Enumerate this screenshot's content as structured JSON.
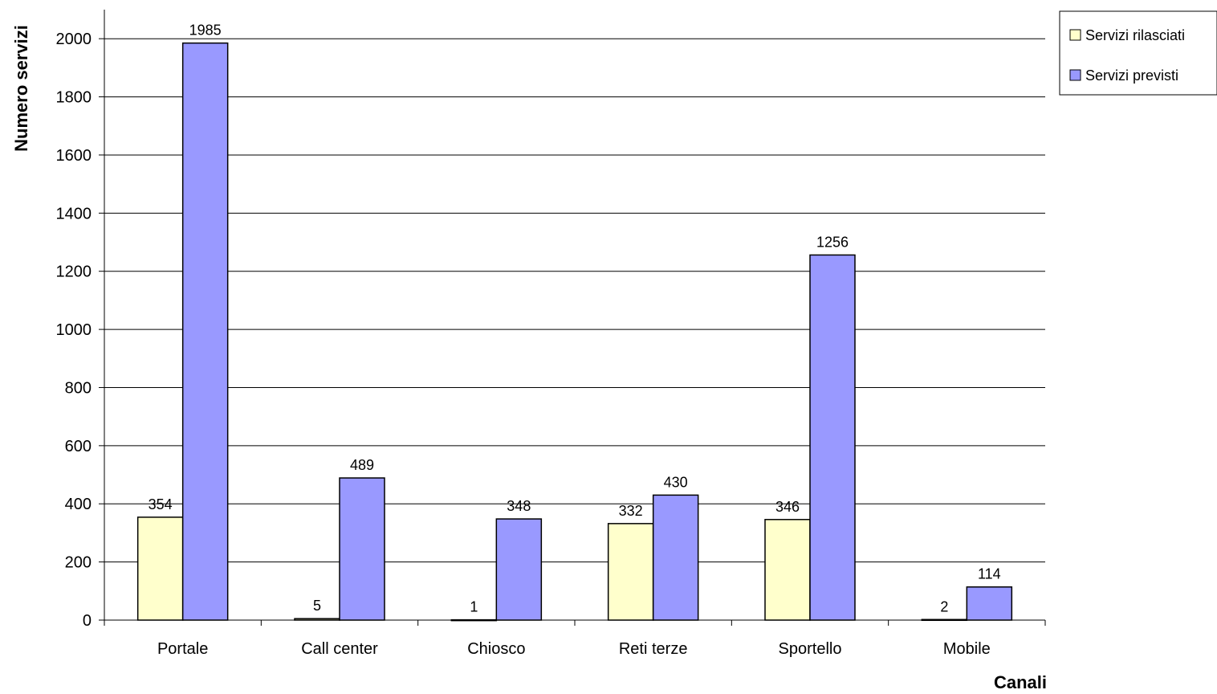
{
  "chart_data": {
    "type": "bar",
    "categories": [
      "Portale",
      "Call center",
      "Chiosco",
      "Reti terze",
      "Sportello",
      "Mobile"
    ],
    "series": [
      {
        "name": "Servizi rilasciati",
        "color": "#FFFFCC",
        "values": [
          354,
          5,
          1,
          332,
          346,
          2
        ]
      },
      {
        "name": "Servizi previsti",
        "color": "#9999FF",
        "values": [
          1985,
          489,
          348,
          430,
          1256,
          114
        ]
      }
    ],
    "xlabel": "Canali",
    "ylabel": "Numero servizi",
    "ylim": [
      0,
      2100
    ],
    "yticks": [
      0,
      200,
      400,
      600,
      800,
      1000,
      1200,
      1400,
      1600,
      1800,
      2000
    ],
    "grid": true,
    "legend_position": "top-right",
    "data_labels": true
  }
}
